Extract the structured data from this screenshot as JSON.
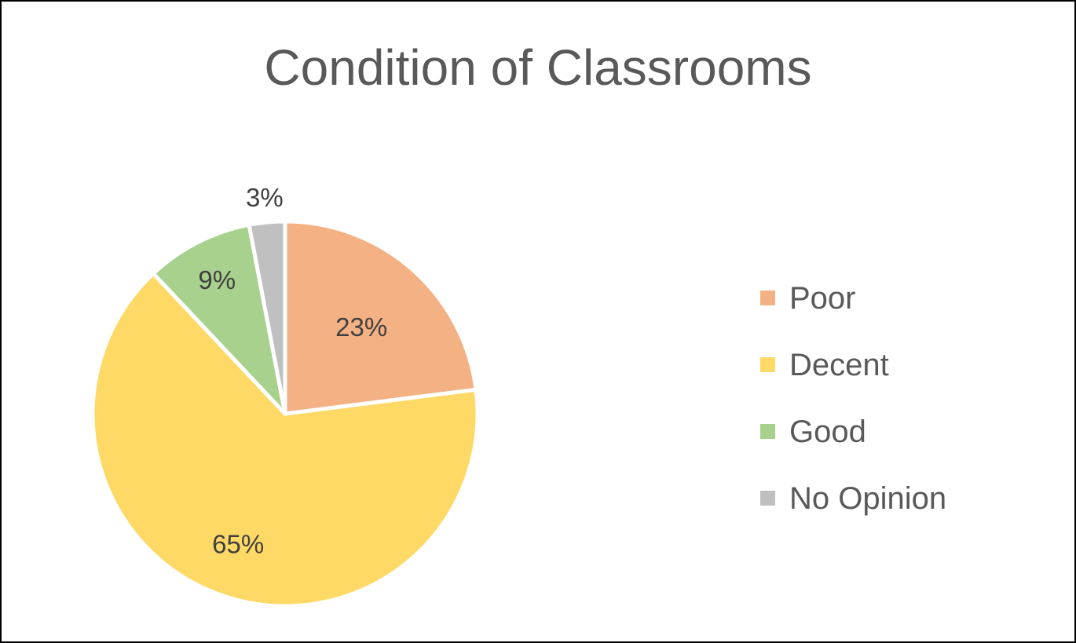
{
  "chart_data": {
    "type": "pie",
    "title": "Condition of Classrooms",
    "categories": [
      "Poor",
      "Decent",
      "Good",
      "No Opinion"
    ],
    "values": [
      23,
      65,
      9,
      3
    ],
    "value_labels": [
      "23%",
      "65%",
      "9%",
      "3%"
    ],
    "colors": [
      "#F4B183",
      "#FFD966",
      "#A9D18E",
      "#C0C0C0"
    ],
    "start_angle": "12 o'clock",
    "direction": "clockwise",
    "legend": "right"
  }
}
